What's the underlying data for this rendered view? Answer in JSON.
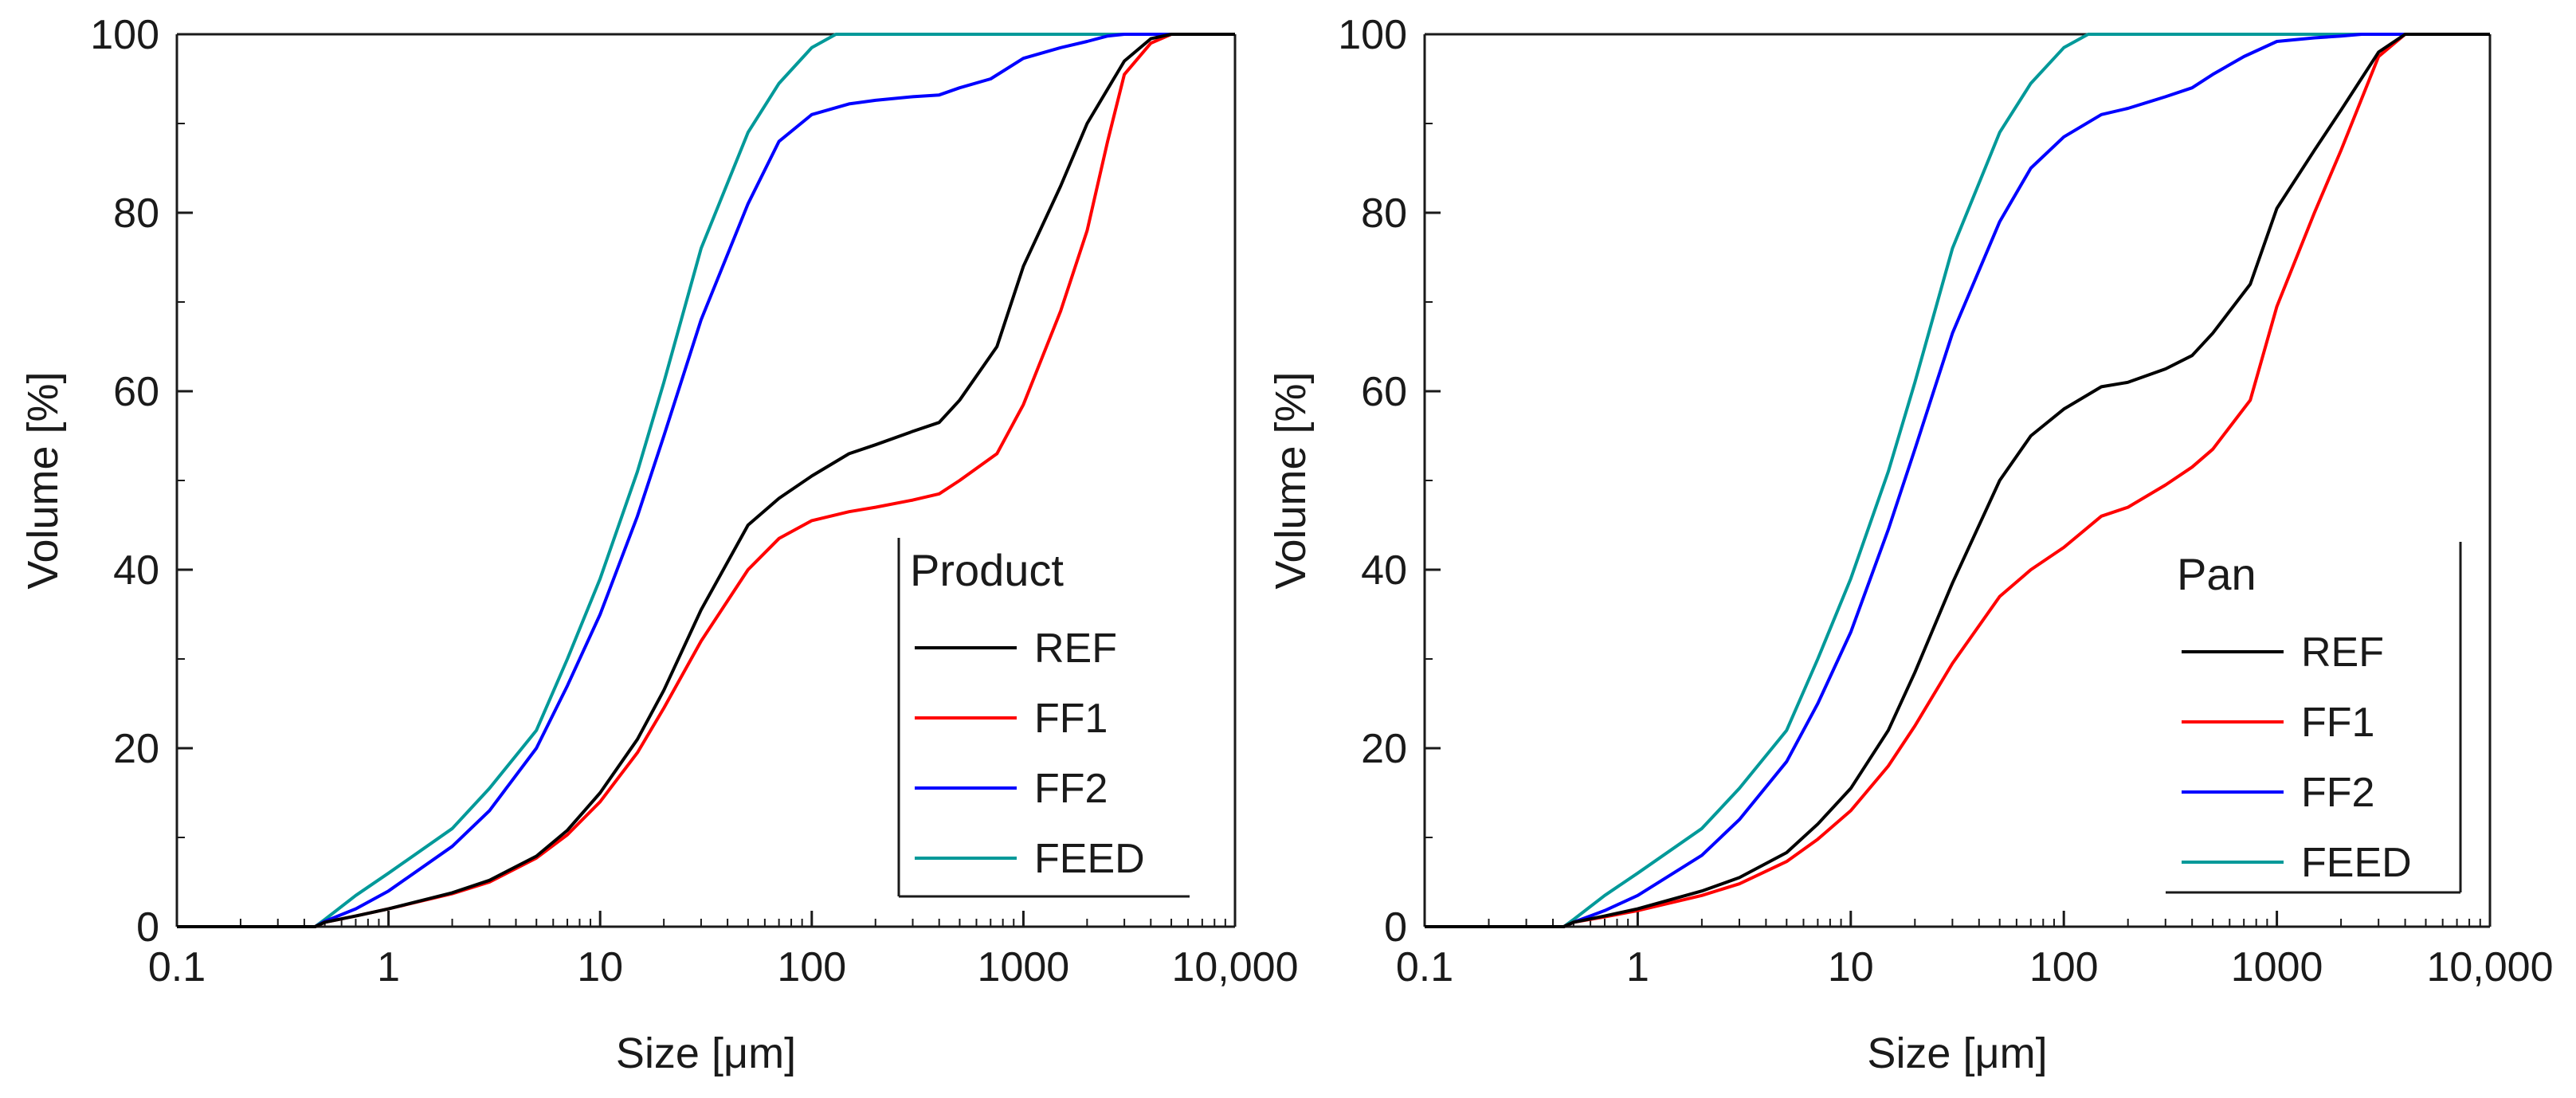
{
  "chart_data": [
    {
      "type": "line",
      "xscale": "log",
      "xlabel": "Size [μm]",
      "ylabel": "Volume [%]",
      "xlim": [
        0.1,
        10000
      ],
      "ylim": [
        0,
        100
      ],
      "x_ticks": [
        0.1,
        1,
        10,
        100,
        1000,
        10000
      ],
      "x_tick_labels": [
        "0.1",
        "1",
        "10",
        "100",
        "1000",
        "10,000"
      ],
      "y_ticks": [
        0,
        20,
        40,
        60,
        80,
        100
      ],
      "y_tick_labels": [
        "0",
        "20",
        "40",
        "60",
        "80",
        "100"
      ],
      "grid": false,
      "legend": {
        "title": "Product",
        "position": "bottom-right"
      },
      "series": [
        {
          "name": "REF",
          "color": "#000000",
          "x": [
            0.1,
            0.45,
            0.5,
            0.7,
            1,
            2,
            3,
            5,
            7,
            10,
            15,
            20,
            30,
            50,
            70,
            100,
            150,
            200,
            300,
            400,
            500,
            750,
            1000,
            1500,
            2000,
            3000,
            4000,
            5000,
            10000
          ],
          "y": [
            0,
            0,
            0.5,
            1.2,
            2,
            3.8,
            5.2,
            7.9,
            10.8,
            15,
            21,
            26.5,
            35.5,
            45,
            48,
            50.5,
            53,
            54,
            55.5,
            56.5,
            59,
            65,
            74,
            83,
            90,
            97,
            99.5,
            100,
            100
          ]
        },
        {
          "name": "FF1",
          "color": "#ff0000",
          "x": [
            0.1,
            0.45,
            0.5,
            0.7,
            1,
            2,
            3,
            5,
            7,
            10,
            15,
            20,
            30,
            50,
            70,
            100,
            150,
            200,
            300,
            400,
            500,
            750,
            1000,
            1500,
            2000,
            2500,
            3000,
            4000,
            5000,
            10000
          ],
          "y": [
            0,
            0,
            0.5,
            1.2,
            2,
            3.7,
            5,
            7.7,
            10.3,
            14,
            19.5,
            24.5,
            32,
            40,
            43.5,
            45.5,
            46.5,
            47,
            47.8,
            48.5,
            50,
            53,
            58.5,
            69,
            78,
            88,
            95.5,
            99,
            100,
            100
          ]
        },
        {
          "name": "FF2",
          "color": "#0000ff",
          "x": [
            0.1,
            0.45,
            0.5,
            0.7,
            1,
            2,
            3,
            5,
            7,
            10,
            15,
            20,
            30,
            50,
            70,
            100,
            150,
            200,
            300,
            400,
            500,
            700,
            1000,
            1500,
            2000,
            2500,
            3000,
            10000
          ],
          "y": [
            0,
            0,
            0.6,
            2,
            4,
            9,
            13,
            20,
            27,
            35,
            46,
            55,
            68,
            81,
            88,
            91,
            92.2,
            92.6,
            93,
            93.2,
            94,
            95,
            97.3,
            98.5,
            99.2,
            99.8,
            100,
            100
          ]
        },
        {
          "name": "FEED",
          "color": "#009999",
          "x": [
            0.1,
            0.45,
            0.5,
            0.7,
            1,
            2,
            3,
            5,
            7,
            10,
            15,
            20,
            30,
            50,
            70,
            100,
            130,
            10000
          ],
          "y": [
            0,
            0,
            0.8,
            3.5,
            6,
            11,
            15.5,
            22,
            30,
            39,
            51,
            61,
            76,
            89,
            94.5,
            98.5,
            100,
            100
          ]
        }
      ]
    },
    {
      "type": "line",
      "xscale": "log",
      "xlabel": "Size [μm]",
      "ylabel": "Volume [%]",
      "xlim": [
        0.1,
        10000
      ],
      "ylim": [
        0,
        100
      ],
      "x_ticks": [
        0.1,
        1,
        10,
        100,
        1000,
        10000
      ],
      "x_tick_labels": [
        "0.1",
        "1",
        "10",
        "100",
        "1000",
        "10,000"
      ],
      "y_ticks": [
        0,
        20,
        40,
        60,
        80,
        100
      ],
      "y_tick_labels": [
        "0",
        "20",
        "40",
        "60",
        "80",
        "100"
      ],
      "grid": false,
      "legend": {
        "title": "Pan",
        "position": "bottom-right"
      },
      "series": [
        {
          "name": "REF",
          "color": "#000000",
          "x": [
            0.1,
            0.45,
            0.5,
            0.7,
            1,
            2,
            3,
            5,
            7,
            10,
            15,
            20,
            30,
            50,
            70,
            100,
            150,
            200,
            300,
            400,
            500,
            750,
            1000,
            1500,
            2000,
            3000,
            4000,
            10000
          ],
          "y": [
            0,
            0,
            0.5,
            1.2,
            2,
            4,
            5.5,
            8.3,
            11.5,
            15.5,
            22,
            28.5,
            38.5,
            50,
            55,
            58,
            60.5,
            61,
            62.5,
            64,
            66.5,
            72,
            80.5,
            87,
            91.5,
            98,
            100,
            100
          ]
        },
        {
          "name": "FF1",
          "color": "#ff0000",
          "x": [
            0.1,
            0.45,
            0.5,
            0.7,
            1,
            2,
            3,
            5,
            7,
            10,
            15,
            20,
            30,
            50,
            70,
            100,
            150,
            200,
            300,
            400,
            500,
            750,
            1000,
            1500,
            2000,
            3000,
            4000,
            10000
          ],
          "y": [
            0,
            0,
            0.5,
            1.1,
            1.8,
            3.5,
            4.8,
            7.3,
            9.8,
            13,
            18,
            22.5,
            29.5,
            37,
            40,
            42.5,
            46,
            47,
            49.5,
            51.5,
            53.5,
            59,
            69.5,
            80,
            87,
            97.5,
            100,
            100
          ]
        },
        {
          "name": "FF2",
          "color": "#0000ff",
          "x": [
            0.1,
            0.45,
            0.5,
            0.7,
            1,
            2,
            3,
            5,
            7,
            10,
            15,
            20,
            30,
            50,
            70,
            100,
            150,
            200,
            300,
            400,
            500,
            700,
            1000,
            1500,
            2000,
            2500,
            10000
          ],
          "y": [
            0,
            0,
            0.5,
            1.8,
            3.5,
            8,
            12,
            18.5,
            25,
            33,
            44.5,
            53.5,
            66.5,
            79,
            85,
            88.5,
            91,
            91.7,
            93,
            94,
            95.5,
            97.5,
            99.2,
            99.6,
            99.8,
            100,
            100
          ]
        },
        {
          "name": "FEED",
          "color": "#009999",
          "x": [
            0.1,
            0.45,
            0.5,
            0.7,
            1,
            2,
            3,
            5,
            7,
            10,
            15,
            20,
            30,
            50,
            70,
            100,
            130,
            10000
          ],
          "y": [
            0,
            0,
            0.8,
            3.5,
            6,
            11,
            15.5,
            22,
            30,
            39,
            51,
            61,
            76,
            89,
            94.5,
            98.5,
            100,
            100
          ]
        }
      ]
    }
  ]
}
